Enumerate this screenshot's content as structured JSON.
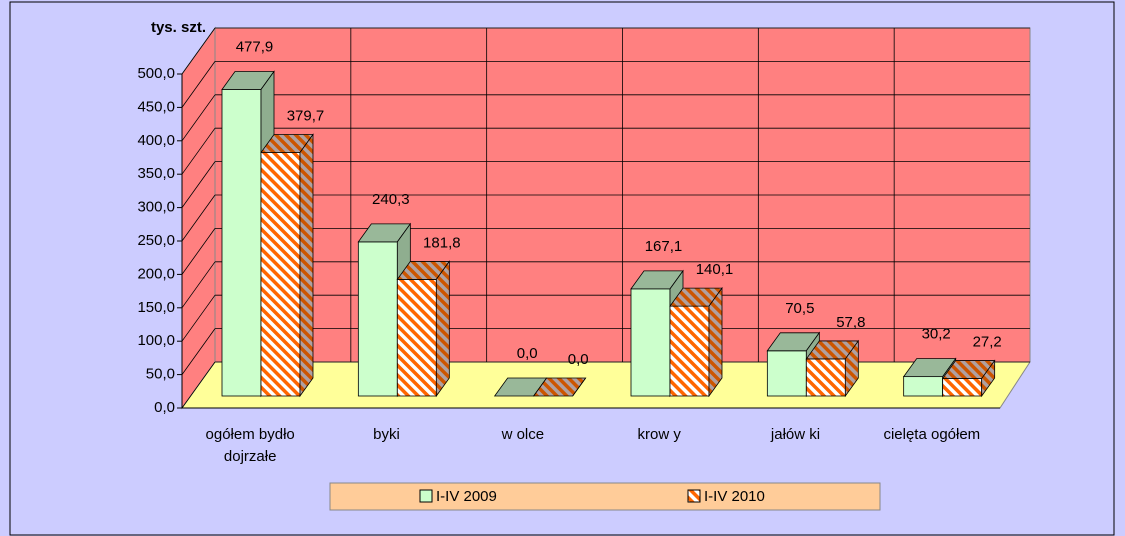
{
  "chart_data": {
    "type": "bar3d",
    "y_label": "tys. szt.",
    "categories": [
      "ogółem bydło dojrzałe",
      "byki",
      "w olce",
      "krow y",
      "jałów ki",
      "cielęta ogółem"
    ],
    "series": [
      {
        "name": "I-IV 2009",
        "color": "#ccffcc",
        "values": [
          477.9,
          240.3,
          0.0,
          167.1,
          70.5,
          30.2
        ],
        "value_labels": [
          "477,9",
          "240,3",
          "0,0",
          "167,1",
          "70,5",
          "30,2"
        ]
      },
      {
        "name": "I-IV 2010",
        "color": "#ff6600",
        "values": [
          379.7,
          181.8,
          0.0,
          140.1,
          57.8,
          27.2
        ],
        "value_labels": [
          "379,7",
          "181,8",
          "0,0",
          "140,1",
          "57,8",
          "27,2"
        ]
      }
    ],
    "ylim": [
      0,
      500
    ],
    "yticks": [
      {
        "value": 0,
        "label": "0,0"
      },
      {
        "value": 50,
        "label": "50,0"
      },
      {
        "value": 100,
        "label": "100,0"
      },
      {
        "value": 150,
        "label": "150,0"
      },
      {
        "value": 200,
        "label": "200,0"
      },
      {
        "value": 250,
        "label": "250,0"
      },
      {
        "value": 300,
        "label": "300,0"
      },
      {
        "value": 350,
        "label": "350,0"
      },
      {
        "value": 400,
        "label": "400,0"
      },
      {
        "value": 450,
        "label": "450,0"
      },
      {
        "value": 500,
        "label": "500,0"
      }
    ],
    "grid": true,
    "legend": "bottom"
  }
}
